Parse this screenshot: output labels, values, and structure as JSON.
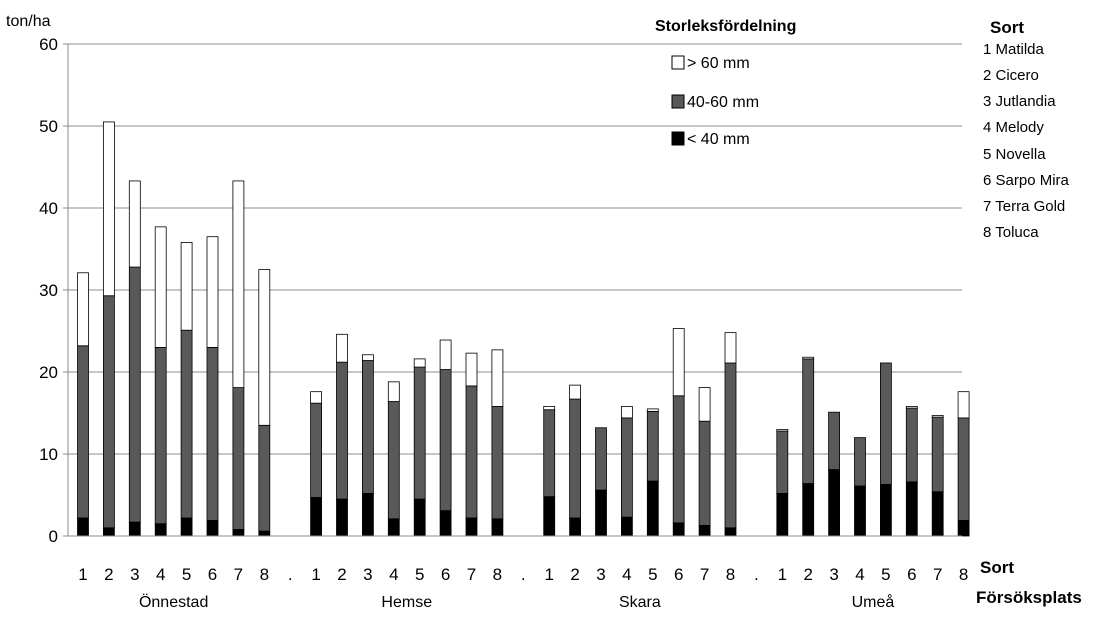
{
  "chart_data": {
    "type": "bar",
    "stacked": true,
    "y_unit_label": "ton/ha",
    "ylim": [
      0,
      60
    ],
    "yticks": [
      0,
      10,
      20,
      30,
      40,
      50,
      60
    ],
    "grid": true,
    "legend": {
      "title": "Storleksfördelning",
      "placement": "top-right",
      "entries": [
        "> 60 mm",
        "40-60 mm",
        "< 40 mm"
      ]
    },
    "series_colors": {
      "small": "#000000",
      "mid": "#595959",
      "large": "#ffffff"
    },
    "sort_legend": {
      "title": "Sort",
      "items": [
        "1 Matilda",
        "2 Cicero",
        "3 Jutlandia",
        "4 Melody",
        "5 Novella",
        "6 Sarpo Mira",
        "7 Terra Gold",
        "8 Toluca"
      ]
    },
    "x_axis_name_top": "Sort",
    "x_axis_name_bottom": "Försöksplats",
    "separator_label": ".",
    "groups": [
      {
        "name": "Önnestad",
        "labels": [
          "1",
          "2",
          "3",
          "4",
          "5",
          "6",
          "7",
          "8"
        ],
        "small": [
          2.2,
          1.0,
          1.7,
          1.5,
          2.2,
          1.9,
          0.8,
          0.6
        ],
        "mid": [
          21.0,
          28.3,
          31.1,
          21.5,
          22.9,
          21.1,
          17.3,
          12.9
        ],
        "large": [
          8.9,
          21.2,
          10.5,
          14.7,
          10.7,
          13.5,
          25.2,
          19.0
        ]
      },
      {
        "name": "Hemse",
        "labels": [
          "1",
          "2",
          "3",
          "4",
          "5",
          "6",
          "7",
          "8"
        ],
        "small": [
          4.7,
          4.5,
          5.2,
          2.1,
          4.5,
          3.1,
          2.2,
          2.1
        ],
        "mid": [
          11.5,
          16.7,
          16.2,
          14.3,
          16.1,
          17.2,
          16.1,
          13.7
        ],
        "large": [
          1.4,
          3.4,
          0.7,
          2.4,
          1.0,
          3.6,
          4.0,
          6.9
        ]
      },
      {
        "name": "Skara",
        "labels": [
          "1",
          "2",
          "3",
          "4",
          "5",
          "6",
          "7",
          "8"
        ],
        "small": [
          4.8,
          2.2,
          5.6,
          2.3,
          6.7,
          1.6,
          1.3,
          1.0
        ],
        "mid": [
          10.6,
          14.5,
          7.6,
          12.1,
          8.5,
          15.5,
          12.7,
          20.1
        ],
        "large": [
          0.4,
          1.7,
          0.0,
          1.4,
          0.3,
          8.2,
          4.1,
          3.7
        ]
      },
      {
        "name": "Umeå",
        "labels": [
          "1",
          "2",
          "3",
          "4",
          "5",
          "6",
          "7",
          "8"
        ],
        "small": [
          5.2,
          6.4,
          8.1,
          6.1,
          6.3,
          6.6,
          5.4,
          1.9
        ],
        "mid": [
          7.6,
          15.2,
          7.0,
          5.9,
          14.8,
          9.0,
          9.1,
          12.5
        ],
        "large": [
          0.2,
          0.2,
          0.0,
          0.0,
          0.0,
          0.2,
          0.2,
          3.2
        ]
      }
    ]
  }
}
